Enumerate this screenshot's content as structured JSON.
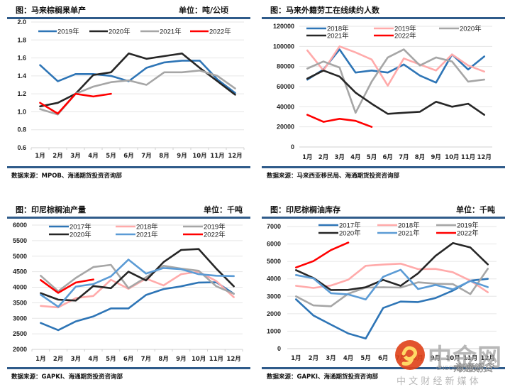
{
  "panels": [
    {
      "title": "图：马来棕榈果单产",
      "unit": "单位：吨/公顷",
      "source": "数据来源：MPOB、海通期货投资咨询部"
    },
    {
      "title": "图：马来外籍劳工在线续约人数",
      "unit": "",
      "source": "数据来源：马来西亚移民局、海通期货投资咨询部"
    },
    {
      "title": "图：印尼棕榈油产量",
      "unit": "单位：千吨",
      "source": "数据来源：GAPKI、海通期货投资咨询部"
    },
    {
      "title": "图：印尼棕榈油库存",
      "unit": "单位：千吨",
      "source": "数据来源：GAPKI、海通期货投资咨询部"
    }
  ],
  "watermark": {
    "brand": "中金网",
    "domain": "CNGOLD.COM.CN",
    "tagline": "中 文 财 经 新 媒 体",
    "overlay": "海通期货",
    "logo_color": "#e0441c"
  },
  "chart_data": [
    {
      "type": "line",
      "title": "图：马来棕榈果单产",
      "unit": "单位：吨/公顷",
      "categories": [
        "1月",
        "2月",
        "3月",
        "4月",
        "5月",
        "6月",
        "7月",
        "8月",
        "9月",
        "10月",
        "11月",
        "12月"
      ],
      "ylim": [
        0.6,
        2.0
      ],
      "yticks": [
        "0.6",
        "0.8",
        "1.0",
        "1.2",
        "1.4",
        "1.6",
        "1.8",
        "2.0"
      ],
      "ytick_values": [
        0.6,
        0.8,
        1.0,
        1.2,
        1.4,
        1.6,
        1.8,
        2.0
      ],
      "grid": true,
      "legend": "top",
      "series": [
        {
          "name": "2019年",
          "color": "#2e75b6",
          "values": [
            1.52,
            1.34,
            1.42,
            1.42,
            1.4,
            1.34,
            1.49,
            1.55,
            1.57,
            1.57,
            1.36,
            1.21
          ]
        },
        {
          "name": "2020年",
          "color": "#262626",
          "values": [
            1.06,
            1.1,
            1.2,
            1.41,
            1.44,
            1.65,
            1.59,
            1.62,
            1.65,
            1.49,
            1.34,
            1.19
          ]
        },
        {
          "name": "2021年",
          "color": "#a6a6a6",
          "values": [
            1.03,
            0.97,
            1.2,
            1.28,
            1.33,
            1.35,
            1.3,
            1.44,
            1.44,
            1.46,
            1.4,
            1.26
          ]
        },
        {
          "name": "2022年",
          "color": "#ff0000",
          "values": [
            1.1,
            0.98,
            1.2,
            1.17,
            1.2
          ]
        }
      ]
    },
    {
      "type": "line",
      "title": "图：马来外籍劳工在线续约人数",
      "categories": [
        "1月",
        "2月",
        "3月",
        "4月",
        "5月",
        "6月",
        "7月",
        "8月",
        "9月",
        "10月",
        "11月",
        "12月"
      ],
      "ylim": [
        0,
        120000
      ],
      "yticks": [
        "0",
        "20000",
        "40000",
        "60000",
        "80000",
        "100000",
        "120000"
      ],
      "ytick_values": [
        0,
        20000,
        40000,
        60000,
        80000,
        100000,
        120000
      ],
      "grid": true,
      "legend": "top",
      "series": [
        {
          "name": "2018年",
          "color": "#2e75b6",
          "values": [
            67000,
            77000,
            97000,
            74000,
            76000,
            74000,
            82000,
            71000,
            64000,
            92000,
            77000,
            90000
          ]
        },
        {
          "name": "2019年",
          "color": "#ffaaaa",
          "values": [
            96000,
            76000,
            100000,
            94000,
            87000,
            61000,
            88000,
            82000,
            76000,
            92000,
            81000,
            75000
          ]
        },
        {
          "name": "2020年",
          "color": "#a6a6a6",
          "values": [
            78000,
            85000,
            79000,
            34000,
            65000,
            89000,
            97000,
            81000,
            89000,
            85000,
            65000,
            67000
          ]
        },
        {
          "name": "2021年",
          "color": "#262626",
          "values": [
            68000,
            76000,
            70000,
            54000,
            43000,
            33000,
            34000,
            35000,
            45000,
            40000,
            43000,
            32000
          ]
        },
        {
          "name": "2022年",
          "color": "#ff0000",
          "values": [
            32000,
            25000,
            28000,
            26000,
            20000
          ]
        }
      ]
    },
    {
      "type": "line",
      "title": "图：印尼棕榈油产量",
      "unit": "单位：千吨",
      "categories": [
        "1月",
        "2月",
        "3月",
        "4月",
        "5月",
        "6月",
        "7月",
        "8月",
        "9月",
        "10月",
        "11月",
        "12月"
      ],
      "ylim": [
        2000,
        6000
      ],
      "yticks": [
        "2000",
        "2500",
        "3000",
        "3500",
        "4000",
        "4500",
        "5000",
        "5500",
        "6000"
      ],
      "ytick_values": [
        2000,
        2500,
        3000,
        3500,
        4000,
        4500,
        5000,
        5500,
        6000
      ],
      "grid": true,
      "legend": "top",
      "series": [
        {
          "name": "2017年",
          "color": "#2e75b6",
          "values": [
            2850,
            2620,
            2900,
            3060,
            3320,
            3320,
            3750,
            3940,
            4030,
            4150,
            4160,
            3790
          ]
        },
        {
          "name": "2018年",
          "color": "#ffaaaa",
          "values": [
            3400,
            3350,
            3650,
            3720,
            4240,
            3950,
            4280,
            4060,
            4420,
            4500,
            4200,
            3680
          ]
        },
        {
          "name": "2019年",
          "color": "#a6a6a6",
          "values": [
            4370,
            3870,
            4300,
            4650,
            4720,
            3970,
            4320,
            4690,
            4600,
            4530,
            4030,
            3790
          ]
        },
        {
          "name": "2020年",
          "color": "#262626",
          "values": [
            3810,
            3600,
            3570,
            4040,
            3970,
            4500,
            4220,
            4810,
            5200,
            5230,
            4600,
            4030
          ]
        },
        {
          "name": "2021年",
          "color": "#5b9bd5",
          "values": [
            3760,
            3370,
            4020,
            4100,
            4350,
            4890,
            4440,
            4620,
            4580,
            4420,
            4370,
            4360
          ]
        },
        {
          "name": "2022年",
          "color": "#ff0000",
          "values": [
            4230,
            3820,
            4150,
            4250
          ]
        }
      ]
    },
    {
      "type": "line",
      "title": "图：印尼棕榈油库存",
      "unit": "单位：千吨",
      "categories": [
        "1月",
        "2月",
        "3月",
        "4月",
        "5月",
        "6月",
        "7月",
        "8月",
        "9月",
        "10月",
        "11月",
        "12月"
      ],
      "ylim": [
        0,
        7000
      ],
      "yticks": [
        "0",
        "1000",
        "2000",
        "3000",
        "4000",
        "5000",
        "6000",
        "7000"
      ],
      "ytick_values": [
        0,
        1000,
        2000,
        3000,
        4000,
        5000,
        6000,
        7000
      ],
      "grid": true,
      "legend": "top",
      "series": [
        {
          "name": "2017年",
          "color": "#2e75b6",
          "values": [
            2830,
            1900,
            1380,
            870,
            580,
            2330,
            2700,
            2670,
            2900,
            3330,
            3900,
            4000
          ]
        },
        {
          "name": "2018年",
          "color": "#ffaaaa",
          "values": [
            3600,
            3480,
            3620,
            3950,
            4750,
            4820,
            4870,
            4560,
            4570,
            4380,
            3900,
            3230
          ]
        },
        {
          "name": "2019年",
          "color": "#a6a6a6",
          "values": [
            3000,
            2480,
            2430,
            3150,
            3500,
            3520,
            3500,
            3800,
            3720,
            3700,
            3130,
            4580
          ]
        },
        {
          "name": "2020年",
          "color": "#262626",
          "values": [
            4500,
            4050,
            3360,
            3370,
            3520,
            3940,
            3600,
            4320,
            5320,
            6050,
            5800,
            4830
          ]
        },
        {
          "name": "2021年",
          "color": "#5b9bd5",
          "values": [
            4220,
            4030,
            3180,
            3110,
            2820,
            4120,
            4520,
            3420,
            3650,
            3400,
            3880,
            3530
          ]
        },
        {
          "name": "2022年",
          "color": "#ff0000",
          "values": [
            4650,
            5020,
            5650,
            6080
          ]
        }
      ]
    }
  ]
}
